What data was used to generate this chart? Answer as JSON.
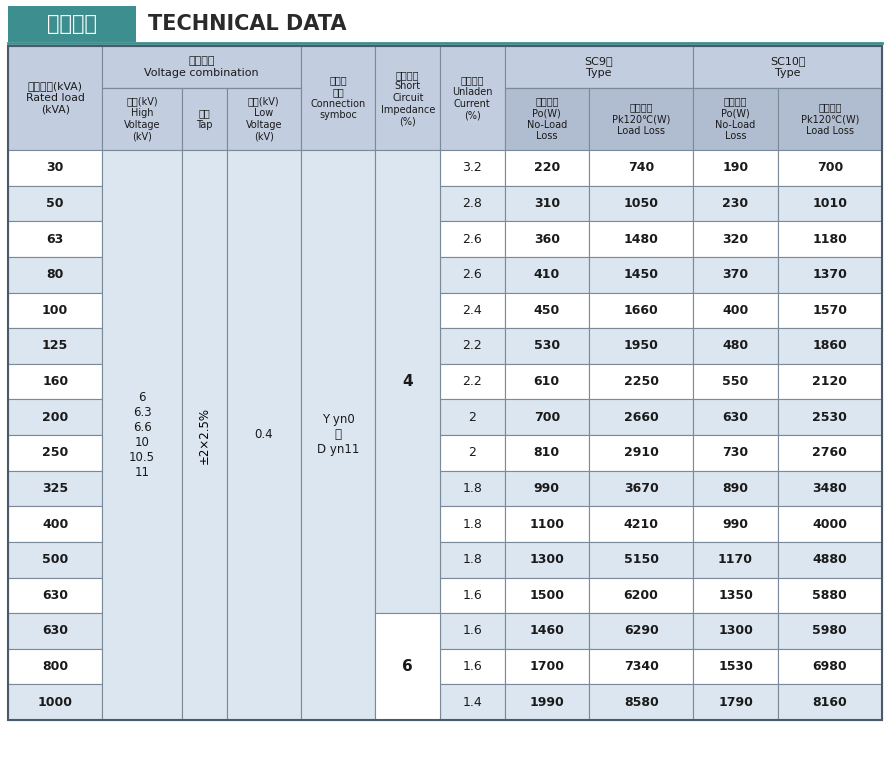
{
  "title_cn": "技术参数",
  "title_en": "TECHNICAL DATA",
  "title_box_color": "#3d8f8f",
  "header_bg": "#c2cee0",
  "header_dark": "#b0bccf",
  "row_white": "#ffffff",
  "row_light": "#dce6f0",
  "border_color": "#7a8a99",
  "text_color": "#1a1a1a",
  "high_voltage": "6\n6.3\n6.6\n10\n10.5\n11",
  "tap": "±2×2.5%",
  "low_voltage": "0.4",
  "connection": "Y yn0\n或\nD yn11",
  "impedance_group1": "4",
  "impedance_group2": "6",
  "rows": [
    [
      30,
      3.2,
      220,
      740,
      190,
      700
    ],
    [
      50,
      2.8,
      310,
      1050,
      230,
      1010
    ],
    [
      63,
      2.6,
      360,
      1480,
      320,
      1180
    ],
    [
      80,
      2.6,
      410,
      1450,
      370,
      1370
    ],
    [
      100,
      2.4,
      450,
      1660,
      400,
      1570
    ],
    [
      125,
      2.2,
      530,
      1950,
      480,
      1860
    ],
    [
      160,
      2.2,
      610,
      2250,
      550,
      2120
    ],
    [
      200,
      2.0,
      700,
      2660,
      630,
      2530
    ],
    [
      250,
      2.0,
      810,
      2910,
      730,
      2760
    ],
    [
      325,
      1.8,
      990,
      3670,
      890,
      3480
    ],
    [
      400,
      1.8,
      1100,
      4210,
      990,
      4000
    ],
    [
      500,
      1.8,
      1300,
      5150,
      1170,
      4880
    ],
    [
      630,
      1.6,
      1500,
      6200,
      1350,
      5880
    ],
    [
      630,
      1.6,
      1460,
      6290,
      1300,
      5980
    ],
    [
      800,
      1.6,
      1700,
      7340,
      1530,
      6980
    ],
    [
      1000,
      1.4,
      1990,
      8580,
      1790,
      8160
    ]
  ]
}
